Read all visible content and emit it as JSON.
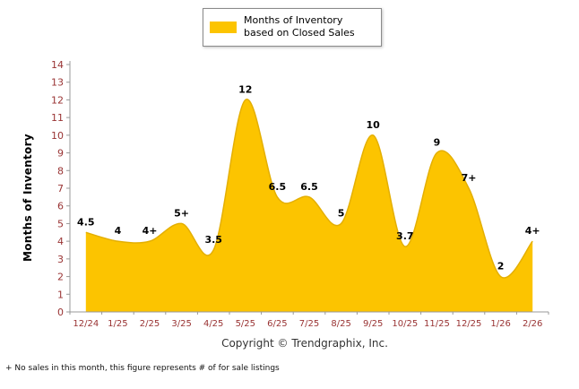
{
  "chart_data": {
    "type": "area",
    "title": "Months of Inventory based on Closed Sales",
    "ylabel": "Months of Inventory",
    "categories": [
      "12/24",
      "1/25",
      "2/25",
      "3/25",
      "4/25",
      "5/25",
      "6/25",
      "7/25",
      "8/25",
      "9/25",
      "10/25",
      "11/25",
      "12/25",
      "1/26",
      "2/26"
    ],
    "values": [
      4.5,
      4,
      4,
      5,
      3.5,
      12,
      6.5,
      6.5,
      5,
      10,
      3.7,
      9,
      7,
      2,
      4
    ],
    "point_labels": [
      "4.5",
      "4",
      "4+",
      "5+",
      "3.5",
      "12",
      "6.5",
      "6.5",
      "5",
      "10",
      "3.7",
      "9",
      "7+",
      "2",
      "4+"
    ],
    "ylim": [
      0,
      14
    ],
    "ytick_step": 1,
    "grid": false,
    "legend_position": "top-center"
  },
  "colors": {
    "area": "#FCC400",
    "area_stroke": "#E4AF00",
    "axis_text": "#993333",
    "axis_line": "#999999",
    "label_text": "#000000"
  },
  "copyright": "Copyright © Trendgraphix, Inc.",
  "footnote": "+ No sales in this month, this figure represents # of for sale listings"
}
